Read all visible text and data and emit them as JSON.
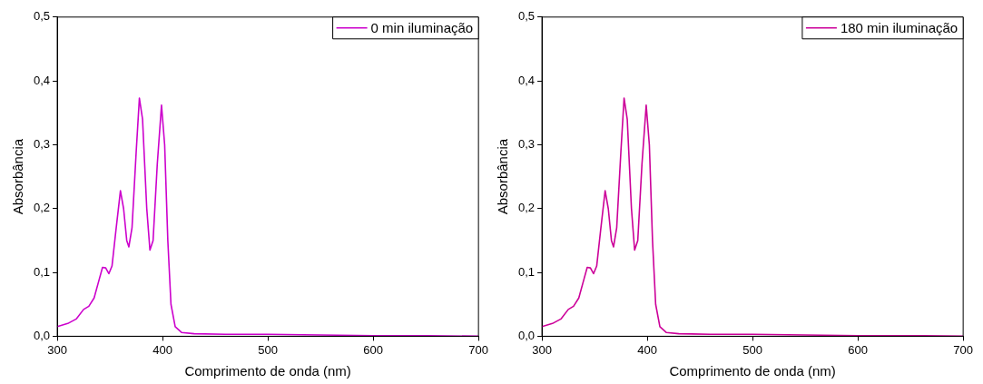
{
  "chart_data": [
    {
      "type": "line",
      "xlabel": "Comprimento de onda (nm)",
      "ylabel": "Absorbância",
      "x": [
        300,
        310,
        318,
        325,
        330,
        335,
        340,
        343,
        346,
        349,
        352,
        356,
        360,
        363,
        366,
        368,
        371,
        375,
        378,
        381,
        385,
        388,
        391,
        395,
        399,
        402,
        405,
        408,
        412,
        418,
        430,
        460,
        500,
        550,
        600,
        650,
        700
      ],
      "series": [
        {
          "name": "0 min iluminação",
          "color": "#cc00cc",
          "values": [
            0.015,
            0.02,
            0.027,
            0.042,
            0.047,
            0.06,
            0.09,
            0.108,
            0.107,
            0.098,
            0.11,
            0.17,
            0.228,
            0.2,
            0.15,
            0.14,
            0.17,
            0.29,
            0.373,
            0.34,
            0.2,
            0.135,
            0.15,
            0.27,
            0.362,
            0.3,
            0.15,
            0.05,
            0.015,
            0.006,
            0.004,
            0.003,
            0.003,
            0.002,
            0.001,
            0.001,
            0
          ]
        }
      ],
      "xlim": [
        300,
        700
      ],
      "xticks": [
        300,
        400,
        500,
        600,
        700
      ],
      "ylim": [
        0,
        0.5
      ],
      "yticks": [
        {
          "value": 0,
          "label": "0,0"
        },
        {
          "value": 0.1,
          "label": "0,1"
        },
        {
          "value": 0.2,
          "label": "0,2"
        },
        {
          "value": 0.3,
          "label": "0,3"
        },
        {
          "value": 0.4,
          "label": "0,4"
        },
        {
          "value": 0.5,
          "label": "0,5"
        }
      ],
      "grid": false,
      "legend": "top right",
      "marker": "none",
      "line_style": "solid"
    },
    {
      "type": "line",
      "xlabel": "Comprimento de onda (nm)",
      "ylabel": "Absorbância",
      "x": [
        300,
        310,
        318,
        325,
        330,
        335,
        340,
        343,
        346,
        349,
        352,
        356,
        360,
        363,
        366,
        368,
        371,
        375,
        378,
        381,
        385,
        388,
        391,
        395,
        399,
        402,
        405,
        408,
        412,
        418,
        430,
        460,
        500,
        550,
        600,
        650,
        700
      ],
      "series": [
        {
          "name": "180 min iluminação",
          "color": "#cc0099",
          "values": [
            0.015,
            0.02,
            0.027,
            0.042,
            0.047,
            0.06,
            0.09,
            0.108,
            0.107,
            0.098,
            0.11,
            0.17,
            0.228,
            0.2,
            0.15,
            0.14,
            0.17,
            0.29,
            0.373,
            0.34,
            0.2,
            0.135,
            0.15,
            0.27,
            0.362,
            0.3,
            0.15,
            0.05,
            0.015,
            0.006,
            0.004,
            0.003,
            0.003,
            0.002,
            0.001,
            0.001,
            0
          ]
        }
      ],
      "xlim": [
        300,
        700
      ],
      "xticks": [
        300,
        400,
        500,
        600,
        700
      ],
      "ylim": [
        0,
        0.5
      ],
      "yticks": [
        {
          "value": 0,
          "label": "0,0"
        },
        {
          "value": 0.1,
          "label": "0,1"
        },
        {
          "value": 0.2,
          "label": "0,2"
        },
        {
          "value": 0.3,
          "label": "0,3"
        },
        {
          "value": 0.4,
          "label": "0,4"
        },
        {
          "value": 0.5,
          "label": "0,5"
        }
      ],
      "grid": false,
      "legend": "top right",
      "marker": "none",
      "line_style": "solid"
    }
  ]
}
